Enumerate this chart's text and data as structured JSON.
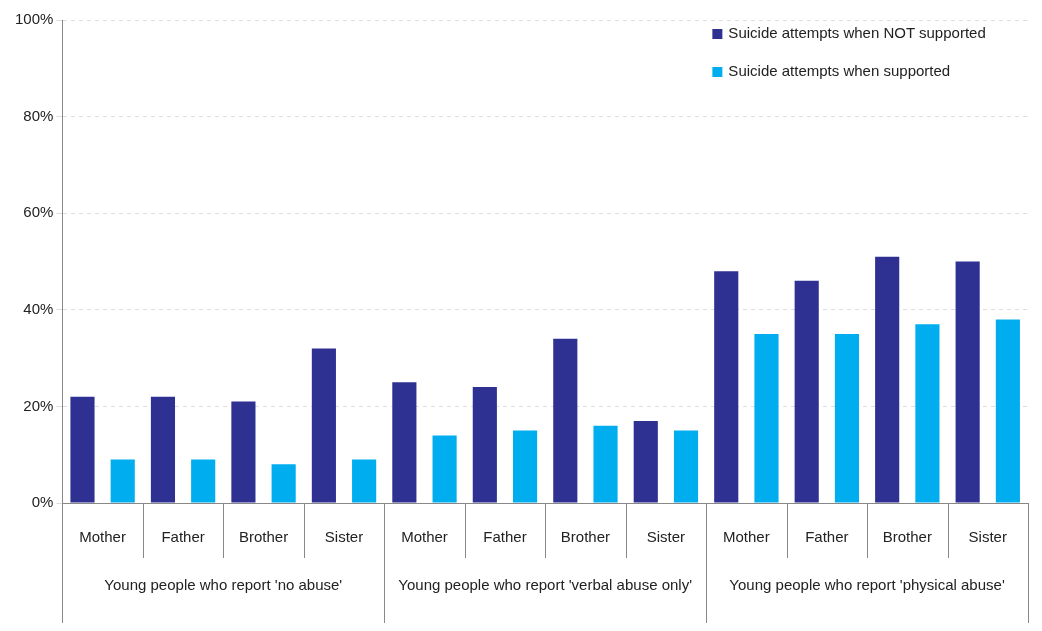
{
  "chart_data": {
    "type": "bar",
    "categories": [
      "Mother",
      "Father",
      "Brother",
      "Sister",
      "Mother",
      "Father",
      "Brother",
      "Sister",
      "Mother",
      "Father",
      "Brother",
      "Sister"
    ],
    "series": [
      {
        "name": "Suicide attempts when NOT supported",
        "color": "#2e3192",
        "values": [
          22,
          22,
          21,
          32,
          25,
          24,
          34,
          17,
          48,
          46,
          51,
          50
        ]
      },
      {
        "name": "Suicide attempts when supported",
        "color": "#00aeef",
        "values": [
          9,
          9,
          8,
          9,
          14,
          15,
          16,
          15,
          35,
          35,
          37,
          38
        ]
      }
    ],
    "ylim": [
      0,
      100
    ],
    "yticks": [
      {
        "value": 0,
        "label": "0%"
      },
      {
        "value": 20,
        "label": "20%"
      },
      {
        "value": 40,
        "label": "40%"
      },
      {
        "value": 60,
        "label": "60%"
      },
      {
        "value": 80,
        "label": "80%"
      },
      {
        "value": 100,
        "label": "100%"
      }
    ],
    "grid": "y",
    "legend": "top right",
    "annotations": [
      "Young people who report 'no abuse'",
      "Young people who report 'verbal abuse only'",
      "Young people who report 'physical abuse'"
    ]
  }
}
